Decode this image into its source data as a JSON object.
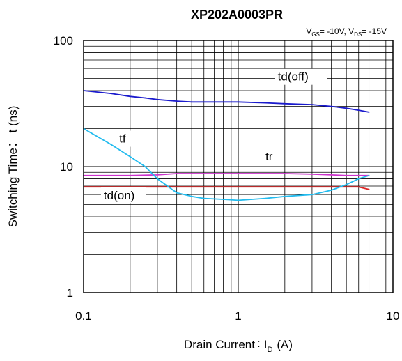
{
  "chart_data": {
    "type": "line",
    "title": "XP202A0003PR",
    "conditions": {
      "vgs_symbol": "V",
      "vgs_sub": "GS",
      "vgs_value": "= -10V, ",
      "vds_symbol": "V",
      "vds_sub": "DS",
      "vds_value": "= -15V"
    },
    "xlabel": {
      "prefix": "Drain Current",
      "colon": ":",
      "symbol": "I",
      "sub": "D",
      "unit": "(A)"
    },
    "ylabel": "Switching Time： t  (ns)",
    "x_scale": "log",
    "y_scale": "log",
    "xlim": [
      0.1,
      10
    ],
    "ylim": [
      1,
      100
    ],
    "x_ticks": [
      {
        "value": 0.1,
        "label": "0.1"
      },
      {
        "value": 1,
        "label": "1"
      },
      {
        "value": 10,
        "label": "10"
      }
    ],
    "y_ticks": [
      {
        "value": 1,
        "label": "1"
      },
      {
        "value": 10,
        "label": "10"
      },
      {
        "value": 100,
        "label": "100"
      }
    ],
    "grid": true,
    "series": [
      {
        "name": "td(off)",
        "color": "#1a1acc",
        "x": [
          0.1,
          0.15,
          0.2,
          0.25,
          0.3,
          0.4,
          0.5,
          0.7,
          1,
          1.5,
          2,
          3,
          4,
          5,
          6,
          7
        ],
        "y": [
          40,
          38,
          36,
          35,
          34,
          33,
          32.5,
          32.5,
          32.5,
          32,
          31.5,
          31,
          30,
          29,
          28,
          27
        ]
      },
      {
        "name": "tr",
        "color": "#cc33cc",
        "x": [
          0.1,
          0.2,
          0.3,
          0.4,
          0.5,
          0.7,
          1,
          2,
          3,
          4,
          5,
          7
        ],
        "y": [
          8.5,
          8.5,
          8.6,
          8.8,
          8.8,
          8.8,
          8.8,
          8.8,
          8.7,
          8.6,
          8.5,
          8.5
        ]
      },
      {
        "name": "td(on)",
        "color": "#dd2222",
        "x": [
          0.1,
          0.2,
          0.5,
          1,
          2,
          4,
          6,
          7
        ],
        "y": [
          6.9,
          6.9,
          6.9,
          6.9,
          6.9,
          6.9,
          6.9,
          6.6
        ]
      },
      {
        "name": "tf",
        "color": "#22bbee",
        "x": [
          0.1,
          0.15,
          0.2,
          0.25,
          0.3,
          0.4,
          0.5,
          0.6,
          0.8,
          1,
          1.5,
          2,
          3,
          4,
          5,
          6,
          7
        ],
        "y": [
          20,
          15,
          12,
          10,
          8,
          6.2,
          5.8,
          5.6,
          5.5,
          5.4,
          5.6,
          5.8,
          6.0,
          6.5,
          7.2,
          8.0,
          8.5
        ]
      }
    ],
    "series_labels": [
      {
        "series": "td(off)",
        "text": "td(off)",
        "x": 1.8,
        "y": 48
      },
      {
        "series": "tr",
        "text": "tr",
        "x": 1.5,
        "y": 11.2
      },
      {
        "series": "td(on)",
        "text": "td(on)",
        "x": 0.135,
        "y": 5.5
      },
      {
        "series": "tf",
        "text": "tf",
        "x": 0.17,
        "y": 15.5
      }
    ]
  }
}
